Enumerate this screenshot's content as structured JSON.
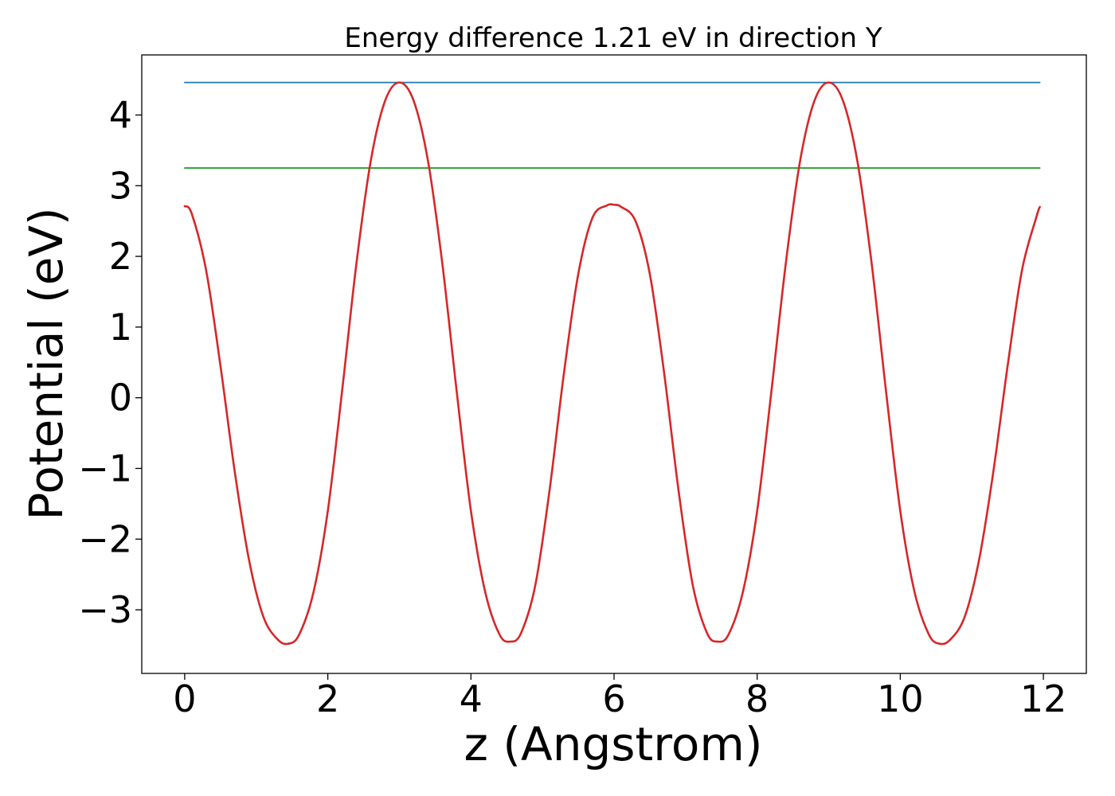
{
  "chart_data": {
    "type": "line",
    "title": "Energy difference 1.21 eV in direction Y",
    "xlabel": "z (Angstrom)",
    "ylabel": "Potential (eV)",
    "xlim": [
      -0.6,
      12.6
    ],
    "ylim": [
      -3.9,
      4.85
    ],
    "x_ticks": [
      0,
      2,
      4,
      6,
      8,
      10,
      12
    ],
    "x_tick_labels": [
      "0",
      "2",
      "4",
      "6",
      "8",
      "10",
      "12"
    ],
    "y_ticks": [
      -3,
      -2,
      -1,
      0,
      1,
      2,
      3,
      4
    ],
    "y_tick_labels": [
      "−3",
      "−2",
      "−1",
      "0",
      "1",
      "2",
      "3",
      "4"
    ],
    "grid": false,
    "series": [
      {
        "color": "#d62728",
        "style": "curve",
        "x": [
          0,
          0.1,
          0.3,
          0.5,
          0.7,
          0.9,
          1.1,
          1.3,
          1.45,
          1.6,
          1.8,
          2.0,
          2.2,
          2.4,
          2.6,
          2.8,
          3.0,
          3.2,
          3.4,
          3.6,
          3.8,
          4.0,
          4.2,
          4.4,
          4.55,
          4.7,
          4.9,
          5.1,
          5.3,
          5.5,
          5.7,
          5.9,
          6.0,
          6.1,
          6.3,
          6.5,
          6.7,
          6.9,
          7.1,
          7.3,
          7.45,
          7.6,
          7.8,
          8.0,
          8.2,
          8.4,
          8.6,
          8.8,
          9.0,
          9.2,
          9.4,
          9.6,
          9.8,
          10.0,
          10.2,
          10.4,
          10.55,
          10.7,
          10.9,
          11.1,
          11.3,
          11.5,
          11.7,
          11.9,
          11.95
        ],
        "y": [
          2.71,
          2.6,
          1.8,
          0.45,
          -1.05,
          -2.3,
          -3.1,
          -3.42,
          -3.48,
          -3.35,
          -2.75,
          -1.6,
          0.1,
          1.9,
          3.35,
          4.2,
          4.46,
          4.2,
          3.35,
          1.9,
          0.1,
          -1.6,
          -2.75,
          -3.35,
          -3.45,
          -3.33,
          -2.65,
          -1.3,
          0.35,
          1.75,
          2.55,
          2.72,
          2.73,
          2.7,
          2.5,
          1.75,
          0.35,
          -1.3,
          -2.65,
          -3.33,
          -3.45,
          -3.35,
          -2.75,
          -1.6,
          0.1,
          1.9,
          3.35,
          4.2,
          4.46,
          4.2,
          3.35,
          1.9,
          0.1,
          -1.6,
          -2.75,
          -3.35,
          -3.48,
          -3.42,
          -3.1,
          -2.3,
          -1.05,
          0.45,
          1.8,
          2.55,
          2.7
        ]
      },
      {
        "color": "#1f77b4",
        "style": "hline",
        "x": [
          0,
          11.95
        ],
        "y": [
          4.46,
          4.46
        ]
      },
      {
        "color": "#2ca02c",
        "style": "hline",
        "x": [
          0,
          11.95
        ],
        "y": [
          3.25,
          3.25
        ]
      }
    ]
  }
}
